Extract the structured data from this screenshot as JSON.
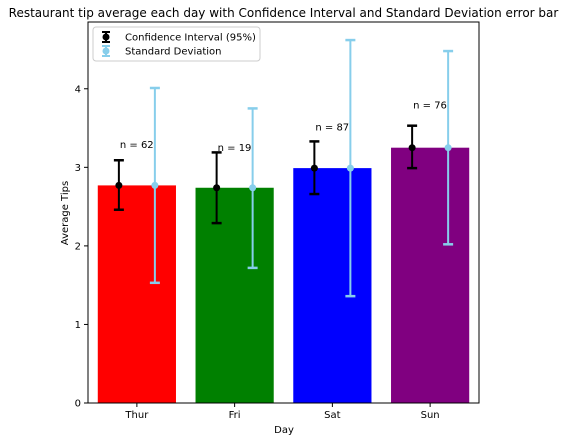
{
  "chart_data": {
    "type": "bar",
    "title": "Restaurant tip average each day with Confidence Interval and Standard Deviation error bar",
    "xlabel": "Day",
    "ylabel": "Average Tips",
    "ylim": [
      0,
      4.85
    ],
    "yticks": [
      0,
      1,
      2,
      3,
      4
    ],
    "categories": [
      "Thur",
      "Fri",
      "Sat",
      "Sun"
    ],
    "values": [
      2.77,
      2.74,
      2.99,
      3.25
    ],
    "bar_colors": [
      "#ff0000",
      "#008000",
      "#0000ff",
      "#800080"
    ],
    "annotations": [
      "n = 62",
      "n = 19",
      "n = 87",
      "n = 76"
    ],
    "annotation_y": [
      3.3,
      3.26,
      3.52,
      3.8
    ],
    "series": [
      {
        "name": "Confidence Interval (95%)",
        "color": "#000000",
        "center": [
          2.77,
          2.74,
          2.99,
          3.25
        ],
        "lower": [
          2.46,
          2.29,
          2.66,
          2.99
        ],
        "upper": [
          3.09,
          3.19,
          3.33,
          3.53
        ]
      },
      {
        "name": "Standard Deviation",
        "color": "#87ceeb",
        "center": [
          2.77,
          2.74,
          2.99,
          3.25
        ],
        "lower": [
          1.53,
          1.72,
          1.36,
          2.02
        ],
        "upper": [
          4.01,
          3.75,
          4.62,
          4.48
        ]
      }
    ],
    "legend_position": "top-left",
    "grid": false
  }
}
